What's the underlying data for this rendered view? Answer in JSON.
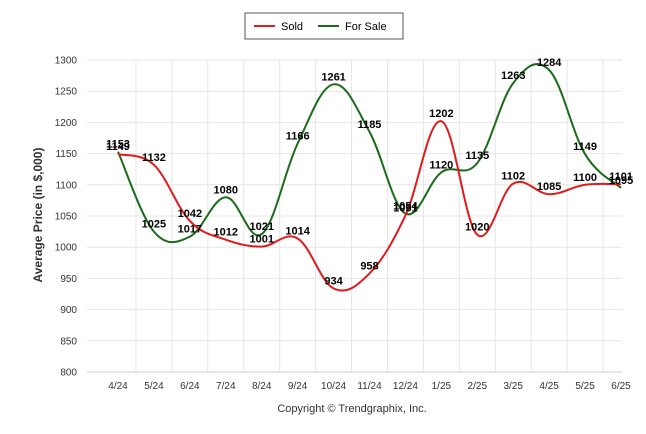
{
  "chart_data": {
    "type": "line",
    "title": "",
    "xlabel": "",
    "ylabel": "Average Price (in $,000)",
    "ylim": [
      800,
      1300
    ],
    "yticks": [
      800,
      850,
      900,
      950,
      1000,
      1050,
      1100,
      1150,
      1200,
      1250,
      1300
    ],
    "categories": [
      "4/24",
      "5/24",
      "6/24",
      "7/24",
      "8/24",
      "9/24",
      "10/24",
      "11/24",
      "12/24",
      "1/25",
      "2/25",
      "3/25",
      "4/25",
      "5/25",
      "6/25"
    ],
    "series": [
      {
        "name": "Sold",
        "color": "#e31a1c",
        "values": [
          1149,
          1132,
          1042,
          1012,
          1001,
          1014,
          934,
          958,
          1051,
          1202,
          1020,
          1102,
          1085,
          1100,
          1101
        ]
      },
      {
        "name": "For Sale",
        "color": "#1a6b1a",
        "values": [
          1153,
          1025,
          1017,
          1080,
          1021,
          1166,
          1261,
          1185,
          1054,
          1120,
          1135,
          1263,
          1284,
          1149,
          1095
        ]
      }
    ],
    "grid": true,
    "legend": "top-center",
    "credit": "Copyright © Trendgraphix, Inc."
  }
}
